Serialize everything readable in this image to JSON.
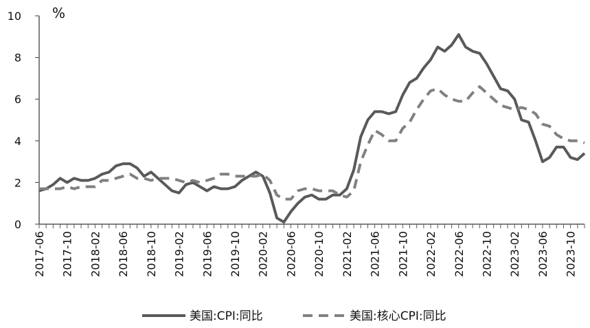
{
  "chart_data": {
    "type": "line",
    "unit_label": "%",
    "ylim": [
      0,
      10
    ],
    "yticks": [
      0,
      2,
      4,
      6,
      8,
      10
    ],
    "x_tick_labels": [
      "2017-06",
      "2017-10",
      "2018-02",
      "2018-06",
      "2018-10",
      "2019-02",
      "2019-06",
      "2019-10",
      "2020-02",
      "2020-06",
      "2020-10",
      "2021-02",
      "2021-06",
      "2021-10",
      "2022-02",
      "2022-06",
      "2022-10",
      "2023-02",
      "2023-06",
      "2023-10"
    ],
    "x": [
      "2017-06",
      "2017-07",
      "2017-08",
      "2017-09",
      "2017-10",
      "2017-11",
      "2017-12",
      "2018-01",
      "2018-02",
      "2018-03",
      "2018-04",
      "2018-05",
      "2018-06",
      "2018-07",
      "2018-08",
      "2018-09",
      "2018-10",
      "2018-11",
      "2018-12",
      "2019-01",
      "2019-02",
      "2019-03",
      "2019-04",
      "2019-05",
      "2019-06",
      "2019-07",
      "2019-08",
      "2019-09",
      "2019-10",
      "2019-11",
      "2019-12",
      "2020-01",
      "2020-02",
      "2020-03",
      "2020-04",
      "2020-05",
      "2020-06",
      "2020-07",
      "2020-08",
      "2020-09",
      "2020-10",
      "2020-11",
      "2020-12",
      "2021-01",
      "2021-02",
      "2021-03",
      "2021-04",
      "2021-05",
      "2021-06",
      "2021-07",
      "2021-08",
      "2021-09",
      "2021-10",
      "2021-11",
      "2021-12",
      "2022-01",
      "2022-02",
      "2022-03",
      "2022-04",
      "2022-05",
      "2022-06",
      "2022-07",
      "2022-08",
      "2022-09",
      "2022-10",
      "2022-11",
      "2022-12",
      "2023-01",
      "2023-02",
      "2023-03",
      "2023-04",
      "2023-05",
      "2023-06",
      "2023-07",
      "2023-08",
      "2023-09",
      "2023-10",
      "2023-11",
      "2023-12"
    ],
    "series": [
      {
        "name": "美国:CPI:同比",
        "style": "solid",
        "color": "#595959",
        "values": [
          1.6,
          1.7,
          1.9,
          2.2,
          2.0,
          2.2,
          2.1,
          2.1,
          2.2,
          2.4,
          2.5,
          2.8,
          2.9,
          2.9,
          2.7,
          2.3,
          2.5,
          2.2,
          1.9,
          1.6,
          1.5,
          1.9,
          2.0,
          1.8,
          1.6,
          1.8,
          1.7,
          1.7,
          1.8,
          2.1,
          2.3,
          2.5,
          2.3,
          1.5,
          0.3,
          0.1,
          0.6,
          1.0,
          1.3,
          1.4,
          1.2,
          1.2,
          1.4,
          1.4,
          1.7,
          2.6,
          4.2,
          5.0,
          5.4,
          5.4,
          5.3,
          5.4,
          6.2,
          6.8,
          7.0,
          7.5,
          7.9,
          8.5,
          8.3,
          8.6,
          9.1,
          8.5,
          8.3,
          8.2,
          7.7,
          7.1,
          6.5,
          6.4,
          6.0,
          5.0,
          4.9,
          4.0,
          3.0,
          3.2,
          3.7,
          3.7,
          3.2,
          3.1,
          3.4
        ]
      },
      {
        "name": "美国:核心CPI:同比",
        "style": "dashed",
        "color": "#808080",
        "values": [
          1.7,
          1.7,
          1.7,
          1.7,
          1.8,
          1.7,
          1.8,
          1.8,
          1.8,
          2.1,
          2.1,
          2.2,
          2.3,
          2.4,
          2.2,
          2.2,
          2.1,
          2.2,
          2.2,
          2.2,
          2.1,
          2.0,
          2.1,
          2.0,
          2.1,
          2.2,
          2.4,
          2.4,
          2.3,
          2.3,
          2.3,
          2.3,
          2.4,
          2.1,
          1.4,
          1.2,
          1.2,
          1.6,
          1.7,
          1.7,
          1.6,
          1.6,
          1.6,
          1.4,
          1.3,
          1.6,
          3.0,
          3.8,
          4.5,
          4.3,
          4.0,
          4.0,
          4.6,
          4.9,
          5.5,
          6.0,
          6.4,
          6.5,
          6.2,
          6.0,
          5.9,
          5.9,
          6.3,
          6.6,
          6.3,
          6.0,
          5.7,
          5.6,
          5.5,
          5.6,
          5.5,
          5.3,
          4.8,
          4.7,
          4.3,
          4.1,
          4.0,
          4.0,
          3.9
        ]
      }
    ]
  }
}
